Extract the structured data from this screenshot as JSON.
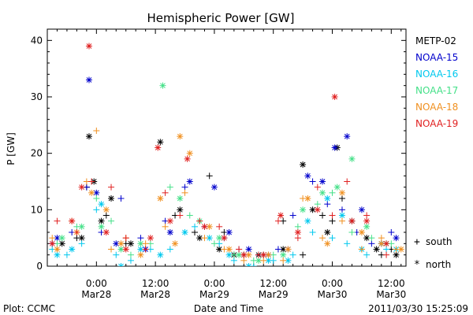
{
  "chart_data": {
    "type": "scatter",
    "title": "Hemispheric Power [GW]",
    "ylabel": "P [GW]",
    "xlabel": "Date and Time",
    "ylim": [
      0,
      42
    ],
    "xlim_hours": [
      -10,
      63
    ],
    "y_ticks": [
      0,
      10,
      20,
      30,
      40
    ],
    "x_ticks": [
      {
        "hour": 0,
        "time": "0:00",
        "date": "Mar28"
      },
      {
        "hour": 12,
        "time": "12:00",
        "date": "Mar28"
      },
      {
        "hour": 24,
        "time": "0:00",
        "date": "Mar29"
      },
      {
        "hour": 36,
        "time": "12:00",
        "date": "Mar29"
      },
      {
        "hour": 48,
        "time": "0:00",
        "date": "Mar30"
      },
      {
        "hour": 60,
        "time": "12:00",
        "date": "Mar30"
      }
    ],
    "hemisphere_legend": [
      {
        "symbol": "+",
        "label": "south"
      },
      {
        "symbol": "*",
        "label": "north"
      }
    ],
    "series": [
      {
        "name": "METP-02",
        "color": "#000000",
        "south": [
          [
            -8,
            3
          ],
          [
            -4,
            5
          ],
          [
            -2,
            14
          ],
          [
            2,
            9
          ],
          [
            6,
            4
          ],
          [
            10,
            3
          ],
          [
            16,
            9
          ],
          [
            20,
            6
          ],
          [
            23,
            16
          ],
          [
            26,
            6
          ],
          [
            30,
            2
          ],
          [
            34,
            2
          ],
          [
            38,
            8
          ],
          [
            42,
            2
          ],
          [
            46,
            9
          ],
          [
            48,
            8
          ],
          [
            50,
            12
          ],
          [
            54,
            3
          ],
          [
            58,
            2
          ],
          [
            60,
            3
          ]
        ],
        "north": [
          [
            -7,
            4
          ],
          [
            -3,
            5
          ],
          [
            -1.5,
            23
          ],
          [
            -0.5,
            15
          ],
          [
            1,
            8
          ],
          [
            3,
            12
          ],
          [
            7,
            4
          ],
          [
            13,
            22
          ],
          [
            17,
            10
          ],
          [
            21,
            5
          ],
          [
            25,
            3
          ],
          [
            28,
            2
          ],
          [
            33,
            2
          ],
          [
            38,
            3
          ],
          [
            42,
            18
          ],
          [
            44,
            10
          ],
          [
            47,
            6
          ],
          [
            49,
            21
          ],
          [
            52,
            8
          ],
          [
            55,
            5
          ],
          [
            57,
            3
          ],
          [
            61,
            2
          ]
        ]
      },
      {
        "name": "NOAA-15",
        "color": "#0000cc",
        "south": [
          [
            -9,
            4
          ],
          [
            -5,
            6
          ],
          [
            -2,
            14
          ],
          [
            1,
            6
          ],
          [
            5,
            12
          ],
          [
            9,
            5
          ],
          [
            14,
            8
          ],
          [
            18,
            14
          ],
          [
            22,
            7
          ],
          [
            26,
            5
          ],
          [
            29,
            3
          ],
          [
            33,
            2
          ],
          [
            37,
            3
          ],
          [
            40,
            9
          ],
          [
            44,
            15
          ],
          [
            47,
            11
          ],
          [
            50,
            10
          ],
          [
            53,
            6
          ],
          [
            56,
            4
          ],
          [
            60,
            6
          ]
        ],
        "north": [
          [
            -8,
            5
          ],
          [
            -1.5,
            33
          ],
          [
            0,
            13
          ],
          [
            4,
            4
          ],
          [
            10,
            3
          ],
          [
            15,
            6
          ],
          [
            19,
            15
          ],
          [
            24,
            14
          ],
          [
            27,
            6
          ],
          [
            31,
            3
          ],
          [
            35,
            2
          ],
          [
            39,
            3
          ],
          [
            43,
            16
          ],
          [
            46,
            15
          ],
          [
            48.5,
            21
          ],
          [
            51,
            23
          ],
          [
            54,
            10
          ],
          [
            58,
            4
          ],
          [
            61,
            5
          ]
        ]
      },
      {
        "name": "NOAA-16",
        "color": "#00c8ee",
        "south": [
          [
            -9,
            3
          ],
          [
            -6,
            2
          ],
          [
            -3,
            4
          ],
          [
            0,
            10
          ],
          [
            4,
            2
          ],
          [
            7,
            1
          ],
          [
            11,
            3
          ],
          [
            15,
            3
          ],
          [
            20,
            7
          ],
          [
            25,
            4
          ],
          [
            28,
            1
          ],
          [
            32,
            0
          ],
          [
            36,
            1
          ],
          [
            40,
            2
          ],
          [
            44,
            6
          ],
          [
            48,
            5
          ],
          [
            51,
            4
          ],
          [
            55,
            2
          ],
          [
            59,
            3
          ]
        ],
        "north": [
          [
            -8,
            2
          ],
          [
            -5,
            3
          ],
          [
            1,
            11
          ],
          [
            5,
            0
          ],
          [
            9,
            3
          ],
          [
            13,
            2
          ],
          [
            18,
            6
          ],
          [
            23,
            5
          ],
          [
            27,
            2
          ],
          [
            31,
            0
          ],
          [
            35,
            1
          ],
          [
            39,
            1
          ],
          [
            43,
            8
          ],
          [
            47,
            12
          ],
          [
            50,
            9
          ],
          [
            54,
            3
          ],
          [
            58,
            4
          ],
          [
            61,
            3
          ]
        ]
      },
      {
        "name": "NOAA-17",
        "color": "#44e088",
        "south": [
          [
            -8,
            4
          ],
          [
            -4,
            7
          ],
          [
            0,
            12
          ],
          [
            3,
            8
          ],
          [
            7,
            2
          ],
          [
            11,
            4
          ],
          [
            15,
            14
          ],
          [
            19,
            9
          ],
          [
            24,
            4
          ],
          [
            28,
            2
          ],
          [
            32,
            1
          ],
          [
            36,
            2
          ],
          [
            41,
            7
          ],
          [
            45,
            11
          ],
          [
            48,
            13
          ],
          [
            52,
            6
          ],
          [
            56,
            5
          ],
          [
            60,
            4
          ]
        ],
        "north": [
          [
            -7,
            5
          ],
          [
            -3,
            7
          ],
          [
            1,
            7
          ],
          [
            5,
            3
          ],
          [
            9,
            4
          ],
          [
            13.5,
            32
          ],
          [
            17,
            12
          ],
          [
            21,
            8
          ],
          [
            25,
            5
          ],
          [
            29,
            2
          ],
          [
            33,
            1
          ],
          [
            38,
            2
          ],
          [
            42,
            10
          ],
          [
            46,
            13
          ],
          [
            49,
            14
          ],
          [
            52,
            19
          ],
          [
            55,
            7
          ],
          [
            59,
            4
          ]
        ]
      },
      {
        "name": "NOAA-18",
        "color": "#f09020",
        "south": [
          [
            -9,
            5
          ],
          [
            -5,
            8
          ],
          [
            -2,
            15
          ],
          [
            0,
            24
          ],
          [
            3,
            3
          ],
          [
            6,
            5
          ],
          [
            10,
            4
          ],
          [
            14,
            7
          ],
          [
            18,
            13
          ],
          [
            22,
            5
          ],
          [
            26,
            3
          ],
          [
            30,
            1
          ],
          [
            34,
            1
          ],
          [
            38,
            1
          ],
          [
            42,
            12
          ],
          [
            46,
            5
          ],
          [
            50,
            8
          ],
          [
            54,
            3
          ],
          [
            58,
            5
          ],
          [
            61,
            3
          ]
        ],
        "north": [
          [
            -8,
            3
          ],
          [
            -4,
            6
          ],
          [
            -1,
            13
          ],
          [
            2,
            10
          ],
          [
            5,
            4
          ],
          [
            9,
            2
          ],
          [
            13,
            12
          ],
          [
            16,
            4
          ],
          [
            17,
            23
          ],
          [
            19,
            20
          ],
          [
            23,
            7
          ],
          [
            27,
            3
          ],
          [
            31,
            2
          ],
          [
            35,
            2
          ],
          [
            39,
            3
          ],
          [
            43,
            12
          ],
          [
            47,
            4
          ],
          [
            50,
            13
          ],
          [
            54,
            6
          ],
          [
            58,
            4
          ],
          [
            62,
            3
          ]
        ]
      },
      {
        "name": "NOAA-19",
        "color": "#e02020",
        "south": [
          [
            -8,
            8
          ],
          [
            -4,
            6
          ],
          [
            -1,
            15
          ],
          [
            3,
            14
          ],
          [
            6,
            5
          ],
          [
            10,
            3
          ],
          [
            14,
            13
          ],
          [
            17,
            9
          ],
          [
            21,
            8
          ],
          [
            25,
            7
          ],
          [
            29,
            3
          ],
          [
            33,
            2
          ],
          [
            37,
            8
          ],
          [
            41,
            5
          ],
          [
            45,
            14
          ],
          [
            48,
            9
          ],
          [
            51,
            15
          ],
          [
            55,
            9
          ],
          [
            59,
            2
          ]
        ],
        "north": [
          [
            -9,
            4
          ],
          [
            -5,
            8
          ],
          [
            -3,
            14
          ],
          [
            -1.5,
            39
          ],
          [
            2,
            6
          ],
          [
            6,
            3
          ],
          [
            11,
            5
          ],
          [
            12.5,
            21
          ],
          [
            15,
            8
          ],
          [
            18.5,
            19
          ],
          [
            22,
            7
          ],
          [
            26,
            5
          ],
          [
            30,
            2
          ],
          [
            34,
            2
          ],
          [
            37.5,
            9
          ],
          [
            41,
            6
          ],
          [
            45,
            10
          ],
          [
            48.5,
            30
          ],
          [
            52,
            8
          ],
          [
            55,
            8
          ],
          [
            59,
            4
          ]
        ]
      }
    ]
  },
  "footer": {
    "plot_credit": "Plot: CCMC",
    "timestamp": "2011/03/30 15:25:09"
  }
}
